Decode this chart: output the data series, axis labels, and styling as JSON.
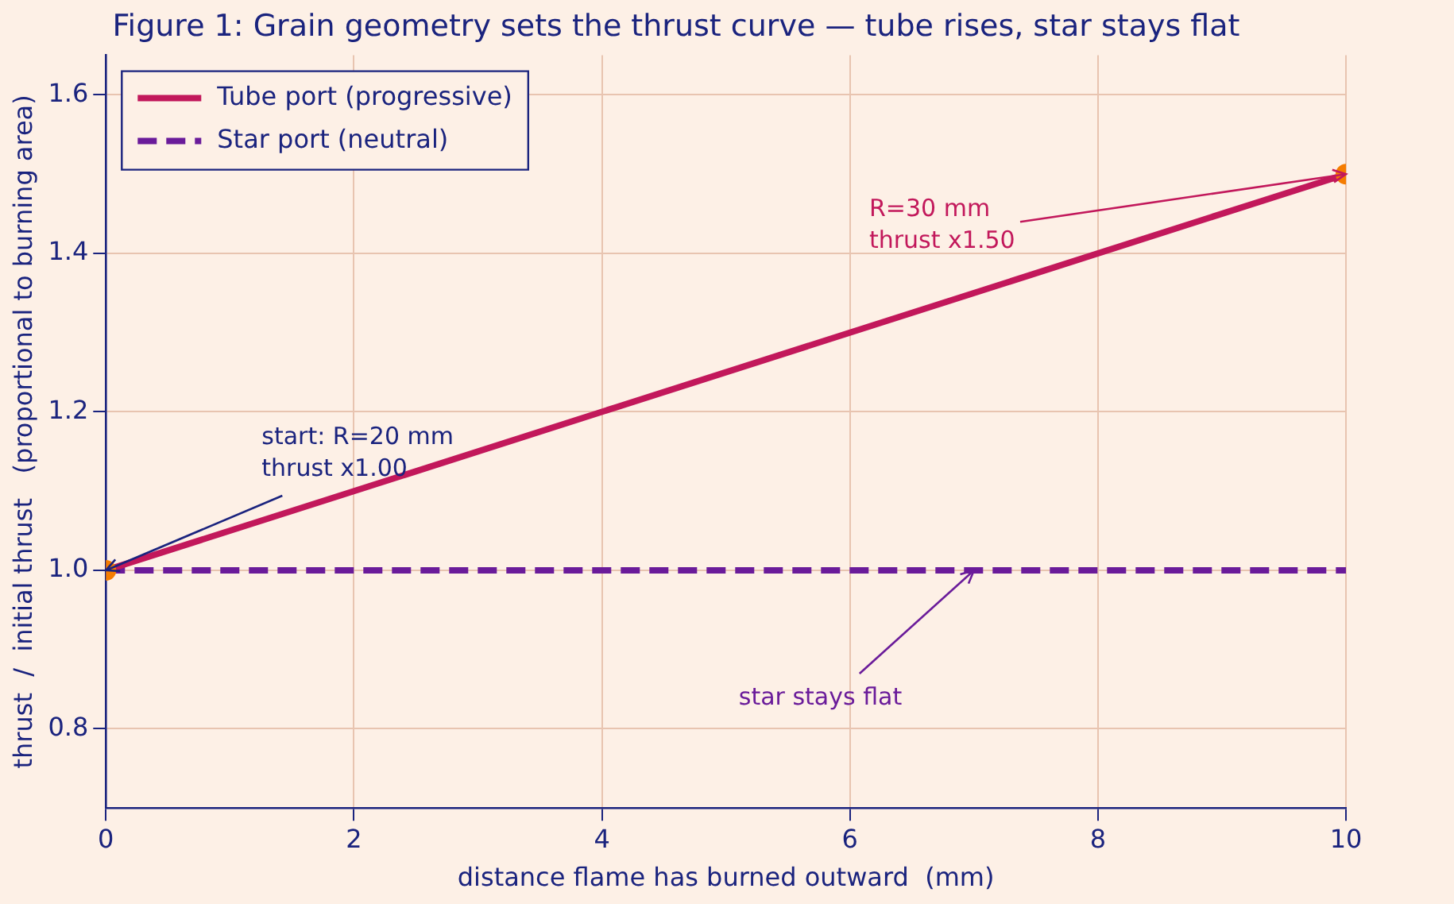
{
  "chart_data": {
    "type": "line",
    "title": "Figure 1: Grain geometry sets the thrust curve — tube rises, star stays flat",
    "xlabel": "distance flame has burned outward  (mm)",
    "ylabel": "thrust  /  initial thrust   (proportional to burning area)",
    "x": [
      0,
      10
    ],
    "series": [
      {
        "name": "Tube port (progressive)",
        "color": "#c2185b",
        "values": [
          1.0,
          1.5
        ],
        "line_style": "solid"
      },
      {
        "name": "Star port (neutral)",
        "color": "#6a1b9a",
        "values": [
          1.0,
          1.0
        ],
        "line_style": "dashed"
      },
      {
        "type": "scatter",
        "color": "#f57c00",
        "values": [
          1.0,
          1.5
        ],
        "marker": "circle"
      }
    ],
    "annotations": [
      {
        "text": "start: R=20 mm\nthrust x1.00",
        "x": 0,
        "y": 1.0
      },
      {
        "text": "R=30 mm\nthrust x1.50",
        "x": 10,
        "y": 1.5
      },
      {
        "text": "star stays flat",
        "x": 7,
        "y": 1.0
      }
    ],
    "xlim": [
      0,
      10
    ],
    "xticks": [
      0,
      2,
      4,
      6,
      8,
      10
    ],
    "ylim": [
      0.7,
      1.65
    ],
    "yticks": [
      0.8,
      {
        "value": 1,
        "label": "1.0"
      },
      1.2,
      1.4,
      1.6
    ],
    "grid": true,
    "legend": "top left"
  }
}
